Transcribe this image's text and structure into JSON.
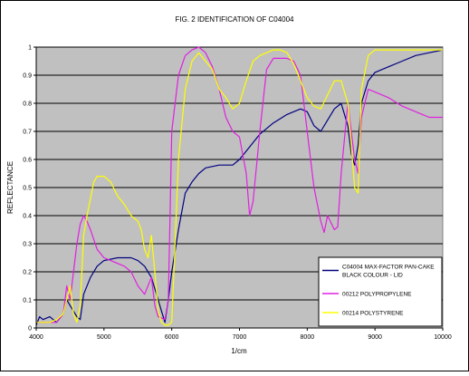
{
  "chart_data": {
    "type": "line",
    "title": "FIG. 2 IDENTIFICATION OF C04004",
    "xlabel": "1/cm",
    "ylabel": "REFLECTANCE",
    "xlim": [
      4000,
      10000
    ],
    "ylim": [
      0,
      1
    ],
    "x_ticks": [
      4000,
      5000,
      6000,
      7000,
      8000,
      9000,
      10000
    ],
    "y_ticks": [
      0,
      0.1,
      0.2,
      0.3,
      0.4,
      0.5,
      0.6,
      0.7,
      0.8,
      0.9,
      1
    ],
    "y_tick_labels": [
      "0",
      "0.1",
      "0.2",
      "0.3",
      "0.4",
      "0.5",
      "0.6",
      "0.7",
      "0.8",
      "0.9",
      "1"
    ],
    "grid": "horizontal",
    "legend_position": "bottom-right",
    "series": [
      {
        "name": "C04004 MAX-FACTOR PAN-CAKE BLACK COLOUR - LID",
        "color": "#000080",
        "points": [
          [
            4000,
            0.01
          ],
          [
            4050,
            0.04
          ],
          [
            4100,
            0.03
          ],
          [
            4200,
            0.04
          ],
          [
            4300,
            0.02
          ],
          [
            4400,
            0.05
          ],
          [
            4450,
            0.1
          ],
          [
            4500,
            0.08
          ],
          [
            4550,
            0.06
          ],
          [
            4600,
            0.04
          ],
          [
            4650,
            0.03
          ],
          [
            4700,
            0.12
          ],
          [
            4800,
            0.18
          ],
          [
            4900,
            0.22
          ],
          [
            5000,
            0.24
          ],
          [
            5200,
            0.25
          ],
          [
            5400,
            0.25
          ],
          [
            5500,
            0.24
          ],
          [
            5600,
            0.22
          ],
          [
            5700,
            0.18
          ],
          [
            5800,
            0.1
          ],
          [
            5850,
            0.06
          ],
          [
            5900,
            0.02
          ],
          [
            5950,
            0.1
          ],
          [
            6000,
            0.2
          ],
          [
            6100,
            0.35
          ],
          [
            6200,
            0.48
          ],
          [
            6300,
            0.52
          ],
          [
            6400,
            0.55
          ],
          [
            6500,
            0.57
          ],
          [
            6700,
            0.58
          ],
          [
            6900,
            0.58
          ],
          [
            7000,
            0.6
          ],
          [
            7100,
            0.63
          ],
          [
            7200,
            0.66
          ],
          [
            7300,
            0.69
          ],
          [
            7500,
            0.73
          ],
          [
            7700,
            0.76
          ],
          [
            7900,
            0.78
          ],
          [
            8000,
            0.77
          ],
          [
            8100,
            0.72
          ],
          [
            8200,
            0.7
          ],
          [
            8300,
            0.74
          ],
          [
            8400,
            0.78
          ],
          [
            8500,
            0.8
          ],
          [
            8600,
            0.72
          ],
          [
            8650,
            0.62
          ],
          [
            8700,
            0.58
          ],
          [
            8750,
            0.65
          ],
          [
            8800,
            0.8
          ],
          [
            8900,
            0.88
          ],
          [
            9000,
            0.91
          ],
          [
            9200,
            0.93
          ],
          [
            9400,
            0.95
          ],
          [
            9600,
            0.97
          ],
          [
            9800,
            0.98
          ],
          [
            10000,
            0.99
          ]
        ]
      },
      {
        "name": "00212 POLYPROPYLENE",
        "color": "#E020E0",
        "points": [
          [
            4000,
            0.02
          ],
          [
            4100,
            0.02
          ],
          [
            4200,
            0.02
          ],
          [
            4300,
            0.02
          ],
          [
            4400,
            0.05
          ],
          [
            4450,
            0.15
          ],
          [
            4500,
            0.1
          ],
          [
            4550,
            0.2
          ],
          [
            4600,
            0.3
          ],
          [
            4650,
            0.37
          ],
          [
            4700,
            0.4
          ],
          [
            4750,
            0.38
          ],
          [
            4800,
            0.35
          ],
          [
            4900,
            0.28
          ],
          [
            5000,
            0.25
          ],
          [
            5100,
            0.24
          ],
          [
            5200,
            0.23
          ],
          [
            5300,
            0.22
          ],
          [
            5400,
            0.2
          ],
          [
            5500,
            0.15
          ],
          [
            5600,
            0.12
          ],
          [
            5700,
            0.18
          ],
          [
            5750,
            0.08
          ],
          [
            5800,
            0.04
          ],
          [
            5900,
            0.03
          ],
          [
            5950,
            0.1
          ],
          [
            6000,
            0.7
          ],
          [
            6100,
            0.9
          ],
          [
            6200,
            0.97
          ],
          [
            6300,
            0.99
          ],
          [
            6400,
            1.0
          ],
          [
            6500,
            0.98
          ],
          [
            6600,
            0.93
          ],
          [
            6700,
            0.85
          ],
          [
            6800,
            0.75
          ],
          [
            6900,
            0.7
          ],
          [
            7000,
            0.68
          ],
          [
            7100,
            0.55
          ],
          [
            7150,
            0.4
          ],
          [
            7200,
            0.45
          ],
          [
            7300,
            0.7
          ],
          [
            7400,
            0.92
          ],
          [
            7500,
            0.96
          ],
          [
            7700,
            0.96
          ],
          [
            7800,
            0.95
          ],
          [
            7900,
            0.9
          ],
          [
            8000,
            0.7
          ],
          [
            8100,
            0.5
          ],
          [
            8200,
            0.38
          ],
          [
            8250,
            0.34
          ],
          [
            8300,
            0.4
          ],
          [
            8400,
            0.35
          ],
          [
            8450,
            0.36
          ],
          [
            8500,
            0.55
          ],
          [
            8600,
            0.8
          ],
          [
            8700,
            0.6
          ],
          [
            8750,
            0.55
          ],
          [
            8800,
            0.75
          ],
          [
            8900,
            0.85
          ],
          [
            9000,
            0.84
          ],
          [
            9200,
            0.82
          ],
          [
            9400,
            0.79
          ],
          [
            9600,
            0.77
          ],
          [
            9800,
            0.75
          ],
          [
            10000,
            0.75
          ]
        ]
      },
      {
        "name": "00214 POLYSTYRENE",
        "color": "#FFFF00",
        "points": [
          [
            4000,
            0.02
          ],
          [
            4100,
            0.02
          ],
          [
            4200,
            0.02
          ],
          [
            4300,
            0.03
          ],
          [
            4400,
            0.05
          ],
          [
            4500,
            0.15
          ],
          [
            4550,
            0.05
          ],
          [
            4600,
            0.02
          ],
          [
            4650,
            0.08
          ],
          [
            4700,
            0.33
          ],
          [
            4750,
            0.4
          ],
          [
            4800,
            0.46
          ],
          [
            4850,
            0.52
          ],
          [
            4900,
            0.54
          ],
          [
            5000,
            0.54
          ],
          [
            5100,
            0.52
          ],
          [
            5200,
            0.47
          ],
          [
            5300,
            0.44
          ],
          [
            5400,
            0.4
          ],
          [
            5500,
            0.38
          ],
          [
            5550,
            0.35
          ],
          [
            5600,
            0.28
          ],
          [
            5650,
            0.25
          ],
          [
            5700,
            0.33
          ],
          [
            5750,
            0.2
          ],
          [
            5800,
            0.06
          ],
          [
            5850,
            0.02
          ],
          [
            5900,
            0.01
          ],
          [
            5950,
            0.01
          ],
          [
            6000,
            0.02
          ],
          [
            6050,
            0.3
          ],
          [
            6100,
            0.6
          ],
          [
            6200,
            0.85
          ],
          [
            6300,
            0.95
          ],
          [
            6400,
            0.98
          ],
          [
            6500,
            0.95
          ],
          [
            6600,
            0.92
          ],
          [
            6700,
            0.85
          ],
          [
            6800,
            0.82
          ],
          [
            6900,
            0.78
          ],
          [
            7000,
            0.8
          ],
          [
            7100,
            0.88
          ],
          [
            7200,
            0.95
          ],
          [
            7300,
            0.97
          ],
          [
            7400,
            0.98
          ],
          [
            7500,
            0.99
          ],
          [
            7600,
            0.99
          ],
          [
            7700,
            0.98
          ],
          [
            7800,
            0.94
          ],
          [
            7900,
            0.88
          ],
          [
            8000,
            0.82
          ],
          [
            8100,
            0.79
          ],
          [
            8200,
            0.78
          ],
          [
            8300,
            0.83
          ],
          [
            8400,
            0.88
          ],
          [
            8500,
            0.88
          ],
          [
            8600,
            0.8
          ],
          [
            8650,
            0.65
          ],
          [
            8700,
            0.5
          ],
          [
            8750,
            0.48
          ],
          [
            8800,
            0.85
          ],
          [
            8900,
            0.97
          ],
          [
            9000,
            0.99
          ],
          [
            9200,
            0.99
          ],
          [
            9500,
            0.99
          ],
          [
            9800,
            0.99
          ],
          [
            10000,
            0.99
          ]
        ]
      }
    ]
  }
}
